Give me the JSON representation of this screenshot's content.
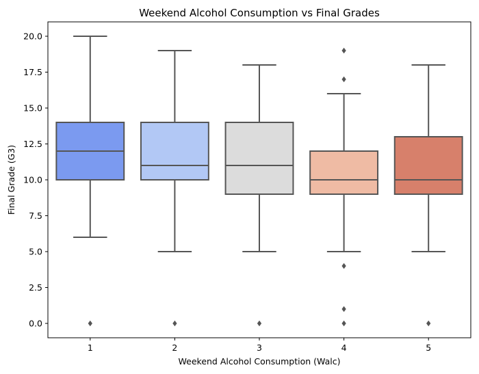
{
  "chart_data": {
    "type": "box",
    "title": "Weekend Alcohol Consumption vs Final Grades",
    "xlabel": "Weekend Alcohol Consumption (Walc)",
    "ylabel": "Final Grade (G3)",
    "ylim": [
      -1,
      21
    ],
    "yticks": [
      0.0,
      2.5,
      5.0,
      7.5,
      10.0,
      12.5,
      15.0,
      17.5,
      20.0
    ],
    "ytick_labels": [
      "0.0",
      "2.5",
      "5.0",
      "7.5",
      "10.0",
      "12.5",
      "15.0",
      "17.5",
      "20.0"
    ],
    "categories": [
      "1",
      "2",
      "3",
      "4",
      "5"
    ],
    "grid": false,
    "legend": "none",
    "boxes": [
      {
        "category": "1",
        "whisker_low": 6,
        "q1": 10,
        "median": 12,
        "q3": 14,
        "whisker_high": 20,
        "outliers": [
          0
        ],
        "color": "#7b9af0"
      },
      {
        "category": "2",
        "whisker_low": 5,
        "q1": 10,
        "median": 11,
        "q3": 14,
        "whisker_high": 19,
        "outliers": [
          0
        ],
        "color": "#b2c8f5"
      },
      {
        "category": "3",
        "whisker_low": 5,
        "q1": 9,
        "median": 11,
        "q3": 14,
        "whisker_high": 18,
        "outliers": [
          0
        ],
        "color": "#dcdcdc"
      },
      {
        "category": "4",
        "whisker_low": 5,
        "q1": 9,
        "median": 10,
        "q3": 12,
        "whisker_high": 16,
        "outliers": [
          0,
          1,
          4,
          17,
          19
        ],
        "color": "#efbba4"
      },
      {
        "category": "5",
        "whisker_low": 5,
        "q1": 9,
        "median": 10,
        "q3": 13,
        "whisker_high": 18,
        "outliers": [
          0
        ],
        "color": "#d7806b"
      }
    ],
    "line_color": "#555555",
    "outlier_color": "#555555"
  }
}
